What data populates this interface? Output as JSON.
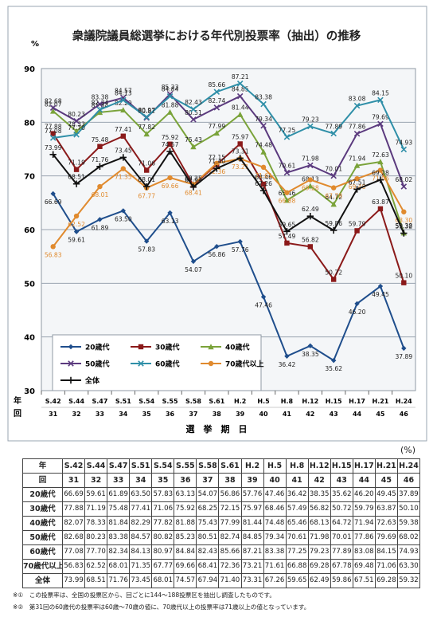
{
  "chart_data": {
    "type": "line",
    "title": "衆議院議員総選挙における年代別投票率（抽出）の推移",
    "y_unit": "%",
    "ylim": [
      30,
      90
    ],
    "yticks": [
      30,
      40,
      50,
      60,
      70,
      80,
      90
    ],
    "xlabel": "選　挙　期　日",
    "x_row_labels": [
      "年",
      "回"
    ],
    "x_years": [
      "S.42",
      "S.44",
      "S.47",
      "S.51",
      "S.54",
      "S.55",
      "S.58",
      "S.61",
      "H.2",
      "H.5",
      "H.8",
      "H.12",
      "H.15",
      "H.17",
      "H.21",
      "H.24"
    ],
    "x_rounds": [
      "31",
      "32",
      "33",
      "34",
      "35",
      "36",
      "37",
      "38",
      "39",
      "40",
      "41",
      "42",
      "43",
      "44",
      "45",
      "46"
    ],
    "grid": true,
    "legend_position": "bottom-left",
    "series": [
      {
        "name": "20歳代",
        "color": "#1f4e8c",
        "marker": "diamond",
        "values": [
          66.69,
          59.61,
          61.89,
          63.5,
          57.83,
          63.13,
          54.07,
          56.86,
          57.76,
          47.46,
          36.42,
          38.35,
          35.62,
          46.2,
          49.45,
          37.89
        ]
      },
      {
        "name": "30歳代",
        "color": "#8b1a1a",
        "marker": "square",
        "values": [
          77.88,
          71.19,
          75.48,
          77.41,
          71.06,
          75.92,
          68.25,
          72.15,
          75.97,
          68.46,
          57.49,
          56.82,
          50.72,
          59.79,
          63.87,
          50.1
        ]
      },
      {
        "name": "40歳代",
        "color": "#7aa33a",
        "marker": "triangle",
        "values": [
          82.07,
          78.33,
          81.84,
          82.29,
          77.82,
          81.88,
          75.43,
          77.99,
          81.44,
          74.48,
          65.46,
          68.13,
          64.72,
          71.94,
          72.63,
          59.38
        ]
      },
      {
        "name": "50歳代",
        "color": "#5b3a7e",
        "marker": "x",
        "values": [
          82.68,
          80.23,
          83.38,
          84.57,
          80.82,
          85.23,
          80.51,
          82.74,
          84.85,
          79.34,
          70.61,
          71.98,
          70.01,
          77.86,
          79.69,
          68.02
        ]
      },
      {
        "name": "60歳代",
        "color": "#2f8fa8",
        "marker": "x",
        "values": [
          77.08,
          77.7,
          82.34,
          84.13,
          80.97,
          84.84,
          82.43,
          85.66,
          87.21,
          83.38,
          77.25,
          79.23,
          77.89,
          83.08,
          84.15,
          74.93
        ]
      },
      {
        "name": "70歳代以上",
        "color": "#e08a2e",
        "marker": "circle",
        "values": [
          56.83,
          62.52,
          68.01,
          71.35,
          67.77,
          69.66,
          68.41,
          72.36,
          73.21,
          71.61,
          66.88,
          69.28,
          67.78,
          69.48,
          71.06,
          63.3
        ]
      },
      {
        "name": "全体",
        "color": "#111111",
        "marker": "plus",
        "values": [
          73.99,
          68.51,
          71.76,
          73.45,
          68.01,
          74.57,
          67.94,
          71.4,
          73.31,
          67.26,
          59.65,
          62.49,
          59.86,
          67.51,
          69.28,
          59.32
        ]
      }
    ],
    "value_labels": {
      "20歳代": [
        "66.69",
        "59.61",
        "61.89",
        "63.50",
        "57.83",
        "63.13",
        "54.07",
        "56.86",
        "57.76",
        "47.46",
        "36.42",
        "38.35",
        "35.62",
        "46.20",
        "49.45",
        "37.89"
      ],
      "30歳代": [
        "77.88",
        "71.19",
        "75.48",
        "77.41",
        "71.06",
        "75.92",
        "68.25",
        "72.15",
        "75.97",
        "68.46",
        "57.49",
        "56.82",
        "50.72",
        "59.79",
        "63.87",
        "50.10"
      ],
      "40歳代": [
        "82.07",
        "78.33",
        "81.84",
        "82.29",
        "77.82",
        "81.88",
        "75.43",
        "77.99",
        "81.44",
        "74.48",
        "65.46",
        "68.13",
        "64.72",
        "71.94",
        "72.63",
        "59.38"
      ],
      "50歳代": [
        "82.68",
        "80.23",
        "83.38",
        "84.57",
        "80.82",
        "85.23",
        "80.51",
        "82.74",
        "84.85",
        "79.34",
        "70.61",
        "71.98",
        "70.01",
        "77.86",
        "79.69",
        "68.02"
      ],
      "60歳代": [
        "77.08",
        "77.70",
        "82.34",
        "84.13",
        "80.97",
        "84.84",
        "82.43",
        "85.66",
        "87.21",
        "83.38",
        "77.25",
        "79.23",
        "77.89",
        "83.08",
        "84.15",
        "74.93"
      ],
      "70歳代以上": [
        "56.83",
        "62.52",
        "68.01",
        "71.35",
        "67.77",
        "69.66",
        "68.41",
        "72.36",
        "73.21",
        "71.61",
        "66.88",
        "69.28",
        "67.78",
        "69.48",
        "71.06",
        "63.30"
      ],
      "全体": [
        "73.99",
        "68.51",
        "71.76",
        "73.45",
        "68.01",
        "74.57",
        "67.94",
        "71.40",
        "73.31",
        "67.26",
        "59.65",
        "62.49",
        "59.86",
        "67.51",
        "69.28",
        "59.32"
      ]
    }
  },
  "table": {
    "unit": "(%)",
    "header_year_label": "年",
    "header_round_label": "回",
    "years": [
      "S.42",
      "S.44",
      "S.47",
      "S.51",
      "S.54",
      "S.55",
      "S.58",
      "S.61",
      "H.2",
      "H.5",
      "H.8",
      "H.12",
      "H.15",
      "H.17",
      "H.21",
      "H.24"
    ],
    "rounds": [
      "31",
      "32",
      "33",
      "34",
      "35",
      "36",
      "37",
      "38",
      "39",
      "40",
      "41",
      "42",
      "43",
      "44",
      "45",
      "46"
    ],
    "rows": [
      {
        "label": "20歳代",
        "values": [
          "66.69",
          "59.61",
          "61.89",
          "63.50",
          "57.83",
          "63.13",
          "54.07",
          "56.86",
          "57.76",
          "47.46",
          "36.42",
          "38.35",
          "35.62",
          "46.20",
          "49.45",
          "37.89"
        ]
      },
      {
        "label": "30歳代",
        "values": [
          "77.88",
          "71.19",
          "75.48",
          "77.41",
          "71.06",
          "75.92",
          "68.25",
          "72.15",
          "75.97",
          "68.46",
          "57.49",
          "56.82",
          "50.72",
          "59.79",
          "63.87",
          "50.10"
        ]
      },
      {
        "label": "40歳代",
        "values": [
          "82.07",
          "78.33",
          "81.84",
          "82.29",
          "77.82",
          "81.88",
          "75.43",
          "77.99",
          "81.44",
          "74.48",
          "65.46",
          "68.13",
          "64.72",
          "71.94",
          "72.63",
          "59.38"
        ]
      },
      {
        "label": "50歳代",
        "values": [
          "82.68",
          "80.23",
          "83.38",
          "84.57",
          "80.82",
          "85.23",
          "80.51",
          "82.74",
          "84.85",
          "79.34",
          "70.61",
          "71.98",
          "70.01",
          "77.86",
          "79.69",
          "68.02"
        ]
      },
      {
        "label": "60歳代",
        "values": [
          "77.08",
          "77.70",
          "82.34",
          "84.13",
          "80.97",
          "84.84",
          "82.43",
          "85.66",
          "87.21",
          "83.38",
          "77.25",
          "79.23",
          "77.89",
          "83.08",
          "84.15",
          "74.93"
        ]
      },
      {
        "label": "70歳代以上",
        "values": [
          "56.83",
          "62.52",
          "68.01",
          "71.35",
          "67.77",
          "69.66",
          "68.41",
          "72.36",
          "73.21",
          "71.61",
          "66.88",
          "69.28",
          "67.78",
          "69.48",
          "71.06",
          "63.30"
        ]
      },
      {
        "label": "全体",
        "values": [
          "73.99",
          "68.51",
          "71.76",
          "73.45",
          "68.01",
          "74.57",
          "67.94",
          "71.40",
          "73.31",
          "67.26",
          "59.65",
          "62.49",
          "59.86",
          "67.51",
          "69.28",
          "59.32"
        ]
      }
    ]
  },
  "notes": [
    "※①　この投票率は、全国の投票区から、回ごとに144～188投票区を抽出し調査したものです。",
    "※②　第31回の60歳代の投票率は60歳～70歳の値に、70歳代以上の投票率は71歳以上の値となっています。"
  ]
}
